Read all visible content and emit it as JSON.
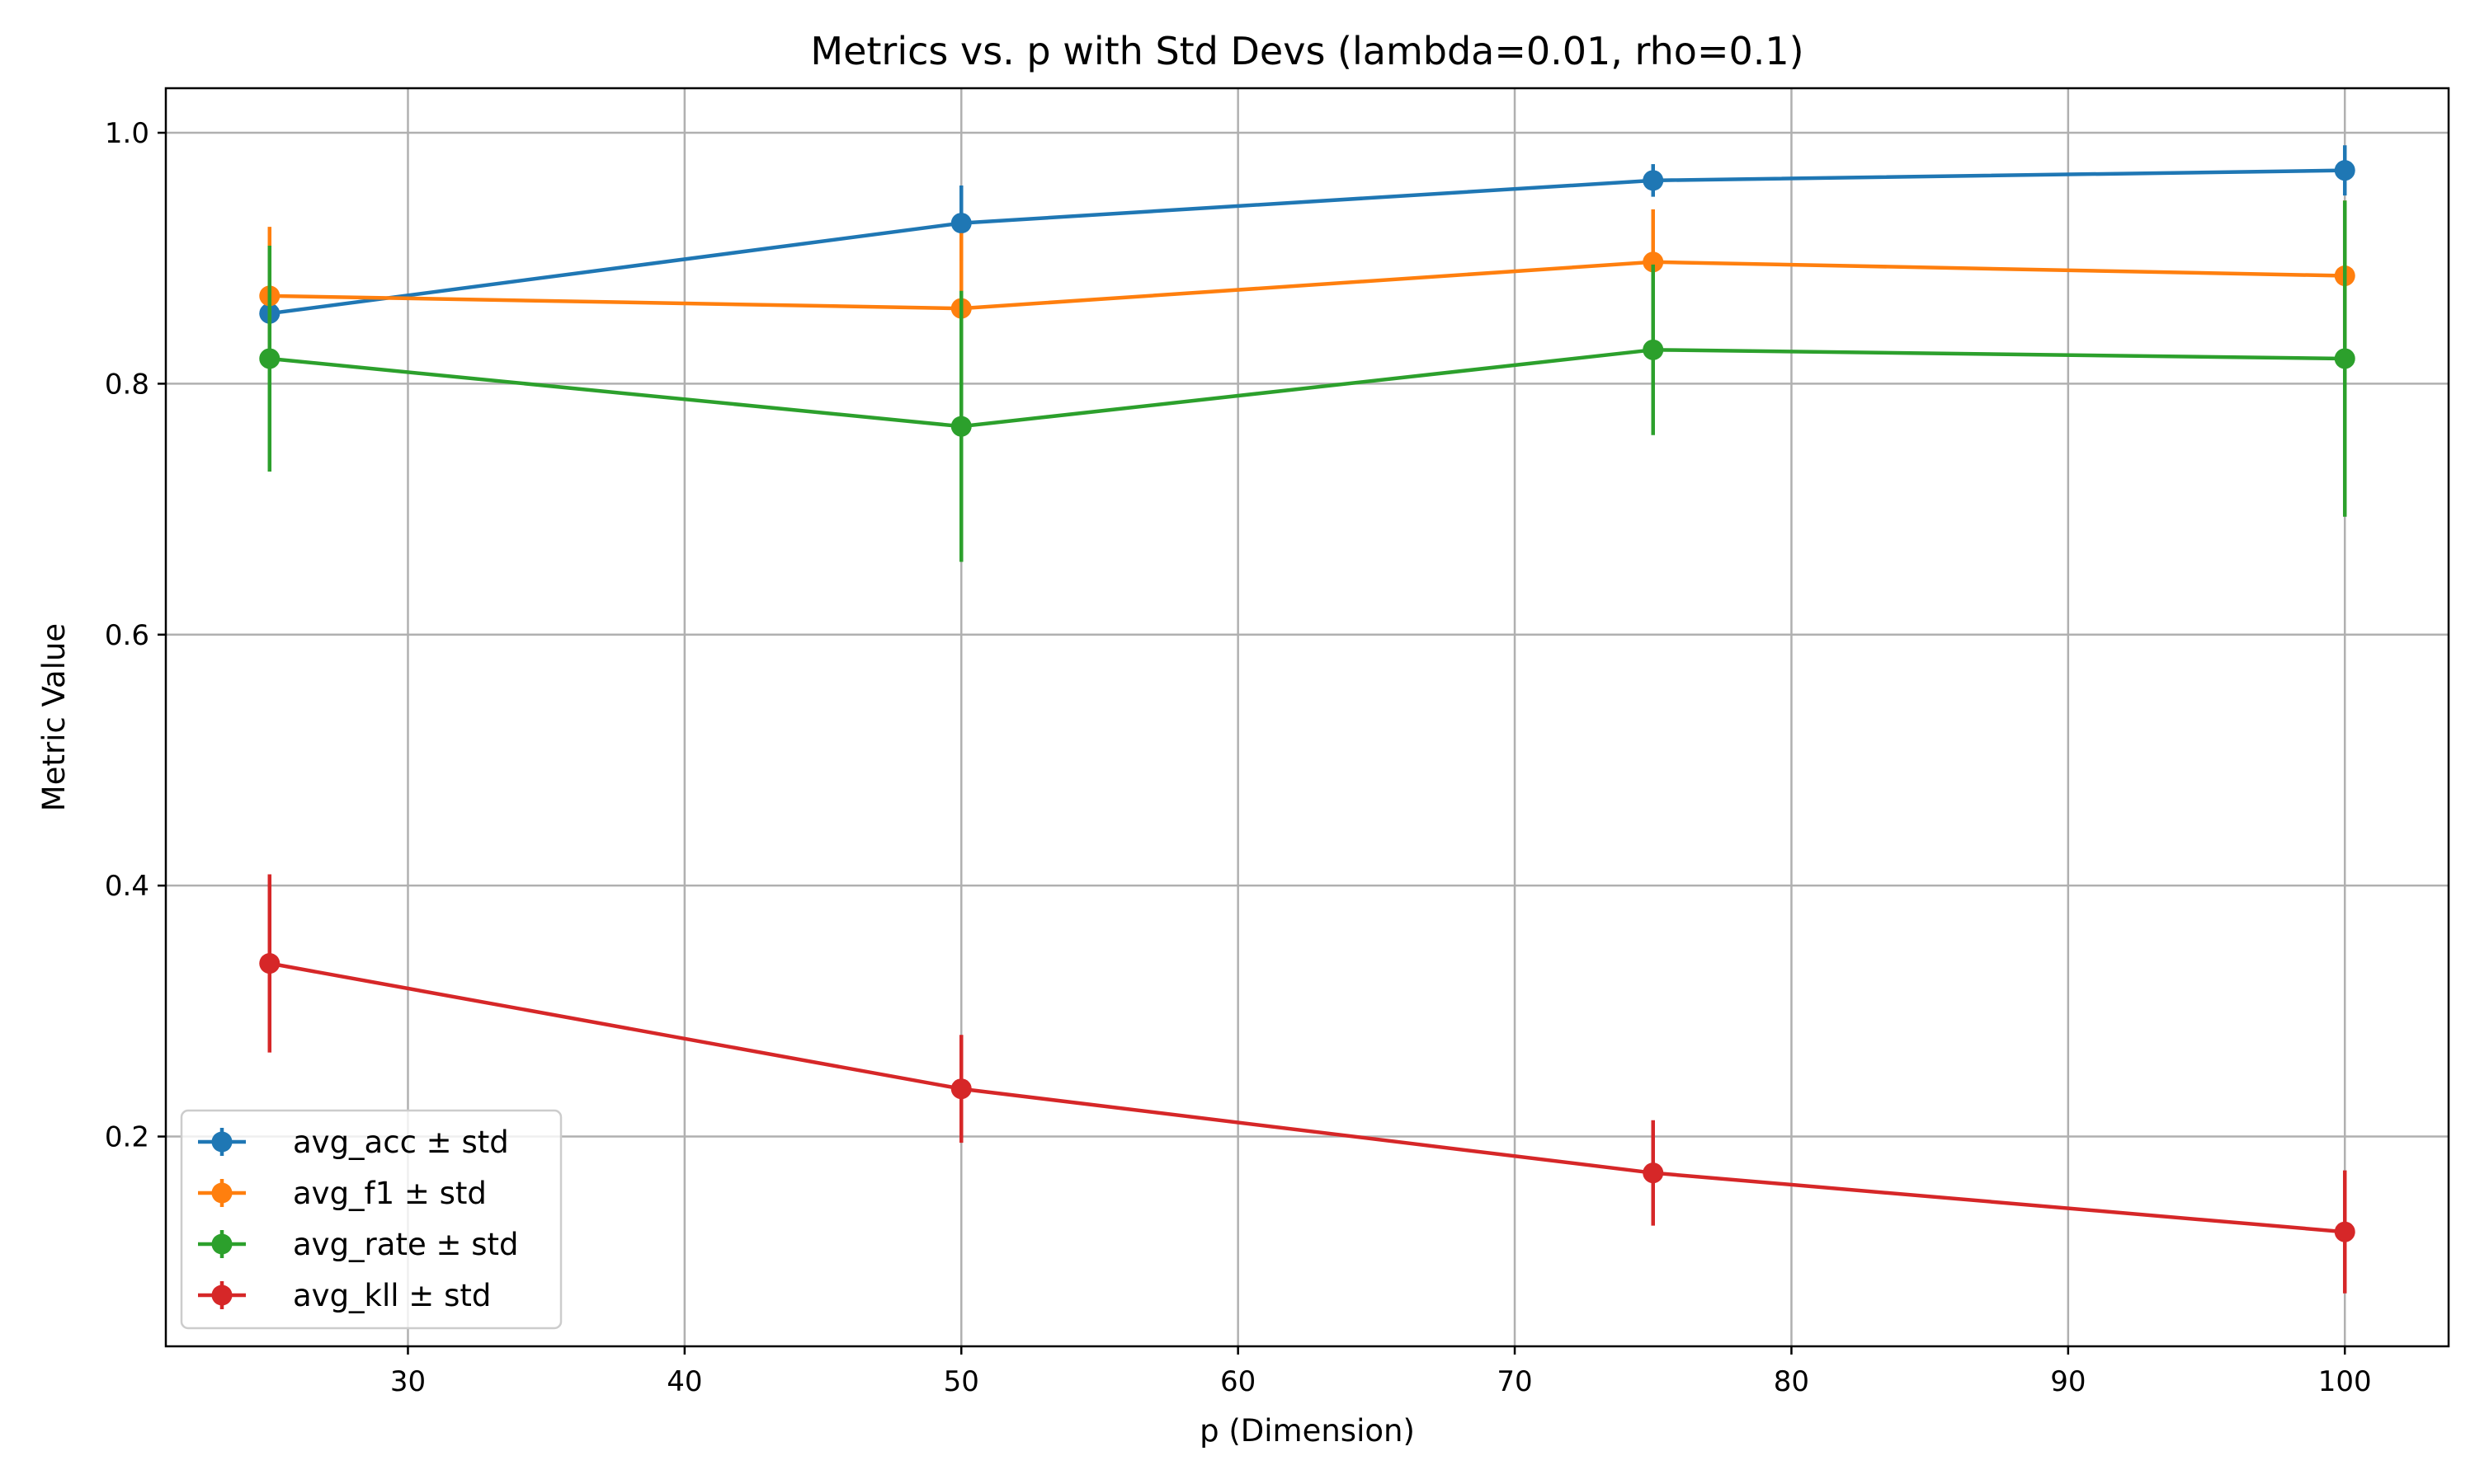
{
  "chart_data": {
    "type": "line",
    "title": "Metrics vs. p with Std Devs (lambda=0.01, rho=0.1)",
    "xlabel": "p (Dimension)",
    "ylabel": "Metric Value",
    "xlim": [
      21.25,
      103.75
    ],
    "ylim": [
      0.0328,
      1.0355
    ],
    "xticks": [
      30,
      40,
      50,
      60,
      70,
      80,
      90,
      100
    ],
    "yticks": [
      0.2,
      0.4,
      0.6,
      0.8,
      1.0
    ],
    "xtick_labels": [
      "30",
      "40",
      "50",
      "60",
      "70",
      "80",
      "90",
      "100"
    ],
    "ytick_labels": [
      "0.2",
      "0.4",
      "0.6",
      "0.8",
      "1.0"
    ],
    "grid": true,
    "legend_position": "lower-left",
    "x": [
      25,
      50,
      75,
      100
    ],
    "series": [
      {
        "name": "avg_acc ± std",
        "color": "#1f77b4",
        "values": [
          0.856,
          0.928,
          0.962,
          0.97
        ],
        "errors": [
          0.012,
          0.03,
          0.013,
          0.02
        ]
      },
      {
        "name": "avg_f1 ± std",
        "color": "#ff7f0e",
        "values": [
          0.87,
          0.86,
          0.897,
          0.886
        ],
        "errors": [
          0.055,
          0.06,
          0.042,
          0.06
        ]
      },
      {
        "name": "avg_rate ± std",
        "color": "#2ca02c",
        "values": [
          0.82,
          0.766,
          0.827,
          0.82
        ],
        "errors": [
          0.09,
          0.108,
          0.068,
          0.126
        ]
      },
      {
        "name": "avg_kll ± std",
        "color": "#d62728",
        "values": [
          0.338,
          0.238,
          0.171,
          0.124
        ],
        "errors": [
          0.071,
          0.043,
          0.042,
          0.049
        ]
      }
    ]
  }
}
